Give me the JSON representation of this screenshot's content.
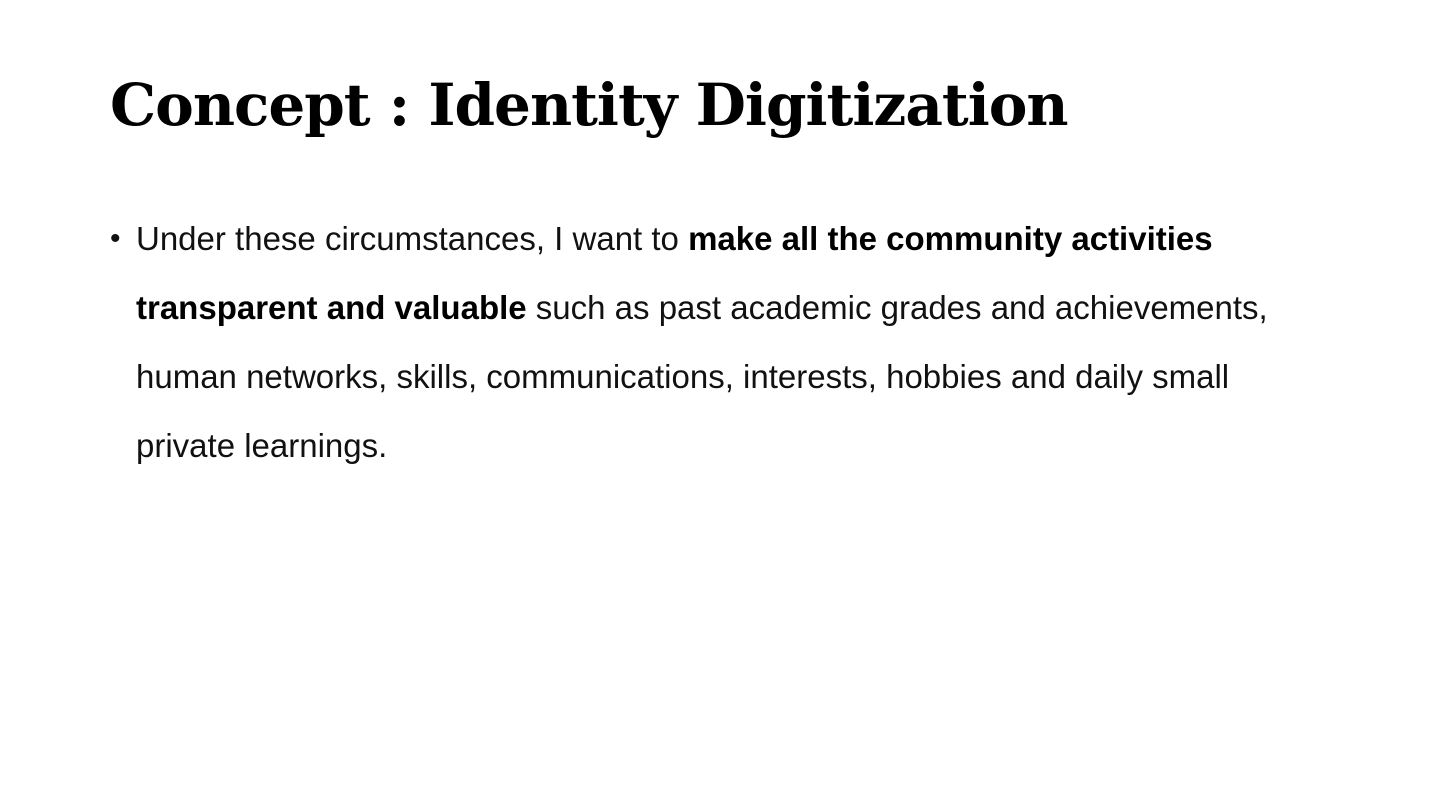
{
  "slide": {
    "title": "Concept : Identity Digitization",
    "bullets": [
      {
        "marker": "•",
        "before": "Under these circumstances, I want to ",
        "bold": "make all the community activities transparent and valuable",
        "after": " such as past academic grades and achievements, human networks, skills, communications, interests, hobbies and daily small private learnings."
      }
    ]
  }
}
